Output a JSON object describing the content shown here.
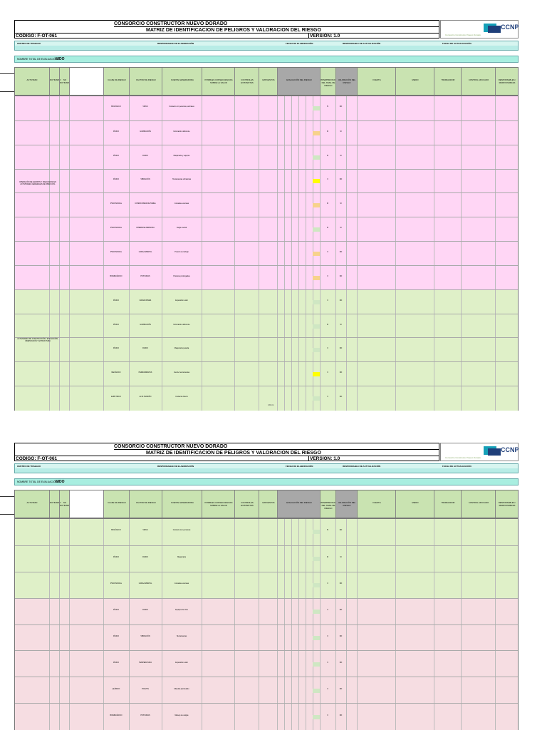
{
  "header": {
    "company": "CONSORCIO CONSTRUCTOR NUEVO DORADO",
    "title": "MATRIZ DE IDENTIFICACION DE PELIGROS Y VALORACION DEL RIESGO",
    "code": "CODIGO: F-OT-061",
    "version": "VERSION: 1.0",
    "logo_text": "CCNP",
    "logo_tagline": "Consorcio Constructor Nuevo Dorado"
  },
  "info_bar": {
    "f1": "CENTRO DE TRABAJO",
    "f2": "RESPONSABLE DE ELABORACIÓN",
    "f3": "FECHA DE ELABORACIÓN",
    "f4": "RESPONSABLE DE ACTUALIZACIÓN",
    "f5": "FECHA DE ACTUALIZACIÓN"
  },
  "evaluation": {
    "label": "NOMBRE TOTAL DE EVALUACIÓN:",
    "value": "NIDO"
  },
  "table_header": {
    "activity": "ACTIVIDAD",
    "routine": "RUTINARIO",
    "non_routine": "NO RUTINARIO",
    "hazard_group": "IDENTIFICACIÓN DEL PELIGRO",
    "hazard_class": "CLASE DE RIESGO",
    "hazard_factor": "FACTOR DE RIESGO",
    "hazard_source": "FUENTE GENERADORA",
    "effects": "POSIBLES CONSECUENCIAS SOBRE LA SALUD",
    "controls_existing": "CONTROLES EXISTENTES",
    "exposed": "EXPUESTOS",
    "frequency": "TIEMPO DE EXPOSICIÓN",
    "evaluation_group": "EVALUACIÓN DEL RIESGO",
    "valuation_group": "VALORACIÓN DEL RIESGO",
    "interpretation": "INTERPRETACIÓN DEL NIVEL DE RIESGO",
    "acceptability": "ACEPTABILIDAD",
    "intervention_group": "CRITERIOS DE INTERVENCIÓN",
    "source": "FUENTE",
    "medium": "MEDIO",
    "worker": "TRABAJADOR",
    "control": "CONTROL APLICADO",
    "responsible": "RESPONSABLES / RESPONSABLES"
  },
  "page1": {
    "activity_pink": "OPERACIÓN DE EQUIPOS Y MAQUINARIA EN ACTIVIDADES GENERALES DE OBRA CIVIL",
    "activity_green": "ACTIVIDADES DE CONSTRUCCIÓN, EXCAVACIÓN, CIMENTACIÓN Y ESTRUCTURA",
    "rows": [
      {
        "cls": "BIOLÓGICO",
        "factor": "VIRUS",
        "source": "Contacto con personas, animales",
        "interp": "IV",
        "acc": "NO",
        "color": "gr",
        "bg": "pink"
      },
      {
        "cls": "FÍSICO",
        "factor": "ILUMINACIÓN",
        "source": "Iluminación deficiente",
        "interp": "III",
        "acc": "SI",
        "color": "orn",
        "bg": "pink"
      },
      {
        "cls": "FÍSICO",
        "factor": "RUIDO",
        "source": "Maquinaria y equipos",
        "interp": "III",
        "acc": "SI",
        "color": "gr",
        "bg": "pink"
      },
      {
        "cls": "FÍSICO",
        "factor": "VIBRACIÓN",
        "source": "Herramientas vibratorias",
        "interp": "II",
        "acc": "NO",
        "color": "yel",
        "bg": "pink"
      },
      {
        "cls": "PSICOSOCIAL",
        "factor": "CONDICIONES DE TAREA",
        "source": "Jornadas extensas",
        "interp": "III",
        "acc": "SI",
        "color": "orn",
        "bg": "pink"
      },
      {
        "cls": "PSICOSOCIAL",
        "factor": "INTERFASE PERSONA",
        "source": "Carga mental",
        "interp": "III",
        "acc": "SI",
        "color": "gr",
        "bg": "pink"
      },
      {
        "cls": "PSICOSOCIAL",
        "factor": "CARGA MENTAL",
        "source": "Presión de trabajo",
        "interp": "II",
        "acc": "NO",
        "color": "orn",
        "bg": "pink"
      },
      {
        "cls": "BIOMECÁNICO",
        "factor": "POSTURAS",
        "source": "Posturas prolongadas",
        "interp": "II",
        "acc": "NO",
        "color": "orn",
        "bg": "pink"
      },
      {
        "cls": "FÍSICO",
        "factor": "RADIACIONES",
        "source": "Exposición solar",
        "interp": "II",
        "acc": "NO",
        "color": "gr",
        "bg": "green"
      },
      {
        "cls": "FÍSICO",
        "factor": "ILUMINACIÓN",
        "source": "Iluminación deficiente",
        "interp": "III",
        "acc": "SI",
        "color": "gr",
        "bg": "green"
      },
      {
        "cls": "FÍSICO",
        "factor": "RUIDO",
        "source": "Maquinaria pesada",
        "interp": "II",
        "acc": "NO",
        "color": "gr",
        "bg": "green"
      },
      {
        "cls": "MECÁNICO",
        "factor": "HERRAMIENTAS",
        "source": "Uso de herramientas",
        "interp": "II",
        "acc": "NO",
        "color": "yel",
        "bg": "green"
      },
      {
        "cls": "ELÉCTRICO",
        "factor": "ALTA TENSIÓN",
        "source": "Contacto directo",
        "interp": "II",
        "acc": "NO",
        "color": "gr",
        "bg": "green"
      }
    ],
    "footer": "CB-01"
  },
  "page2": {
    "rows": [
      {
        "cls": "BIOLÓGICO",
        "factor": "VIRUS",
        "source": "Contacto con personas",
        "interp": "IV",
        "acc": "NO",
        "color": "gr",
        "bg": "green"
      },
      {
        "cls": "FÍSICO",
        "factor": "RUIDO",
        "source": "Maquinaria",
        "interp": "III",
        "acc": "SI",
        "color": "gr",
        "bg": "green"
      },
      {
        "cls": "PSICOSOCIAL",
        "factor": "CARGA MENTAL",
        "source": "Jornadas extensas",
        "interp": "II",
        "acc": "NO",
        "color": "gr",
        "bg": "green"
      },
      {
        "cls": "FÍSICO",
        "factor": "RUIDO",
        "source": "Equipos de obra",
        "interp": "II",
        "acc": "NO",
        "color": "gr",
        "bg": "rose"
      },
      {
        "cls": "FÍSICO",
        "factor": "VIBRACIÓN",
        "source": "Herramientas",
        "interp": "II",
        "acc": "NO",
        "color": "gr",
        "bg": "rose"
      },
      {
        "cls": "FÍSICO",
        "factor": "TEMPERATURA",
        "source": "Exposición solar",
        "interp": "II",
        "acc": "NO",
        "color": "gr",
        "bg": "rose"
      },
      {
        "cls": "QUÍMICO",
        "factor": "POLVOS",
        "source": "Material particulado",
        "interp": "II",
        "acc": "NO",
        "color": "gr",
        "bg": "rose"
      },
      {
        "cls": "BIOMECÁNICO",
        "factor": "POSTURAS",
        "source": "Manejo de cargas",
        "interp": "II",
        "acc": "NO",
        "color": "gr",
        "bg": "rose"
      }
    ]
  }
}
